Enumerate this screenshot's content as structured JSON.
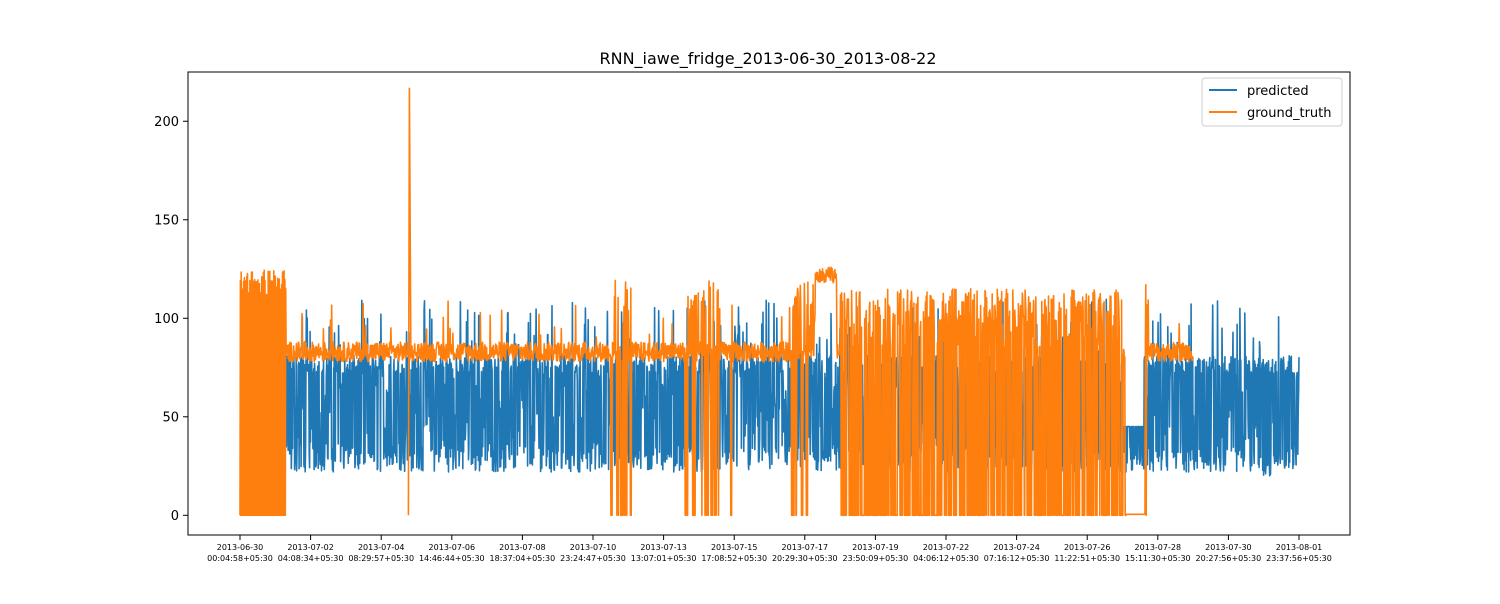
{
  "chart_data": {
    "type": "line",
    "title": "RNN_iawe_fridge_2013-06-30_2013-08-22",
    "xlabel": "",
    "ylabel": "",
    "ylim": [
      -10,
      225
    ],
    "yticks": [
      0,
      50,
      100,
      150,
      200
    ],
    "xticks": [
      [
        "2013-06-30",
        "00:04:58+05:30"
      ],
      [
        "2013-07-02",
        "04:08:34+05:30"
      ],
      [
        "2013-07-04",
        "08:29:57+05:30"
      ],
      [
        "2013-07-06",
        "14:46:44+05:30"
      ],
      [
        "2013-07-08",
        "18:37:04+05:30"
      ],
      [
        "2013-07-10",
        "23:24:47+05:30"
      ],
      [
        "2013-07-13",
        "13:07:01+05:30"
      ],
      [
        "2013-07-15",
        "17:08:52+05:30"
      ],
      [
        "2013-07-17",
        "20:29:30+05:30"
      ],
      [
        "2013-07-19",
        "23:50:09+05:30"
      ],
      [
        "2013-07-22",
        "04:06:12+05:30"
      ],
      [
        "2013-07-24",
        "07:16:12+05:30"
      ],
      [
        "2013-07-26",
        "11:22:51+05:30"
      ],
      [
        "2013-07-28",
        "15:11:30+05:30"
      ],
      [
        "2013-07-30",
        "20:27:56+05:30"
      ],
      [
        "2013-08-01",
        "23:37:56+05:30"
      ]
    ],
    "grid": false,
    "legend_position": "top-right",
    "series": [
      {
        "name": "predicted",
        "color": "#1f77b4",
        "x_range": [
          0,
          15
        ],
        "baseline_low": 22,
        "plateau": 80,
        "spike_max": 110
      },
      {
        "name": "ground_truth",
        "color": "#ff7f0e",
        "x_range": [
          0,
          13.5
        ],
        "steady_level": 82,
        "off_level": 0,
        "max": 217
      }
    ]
  }
}
